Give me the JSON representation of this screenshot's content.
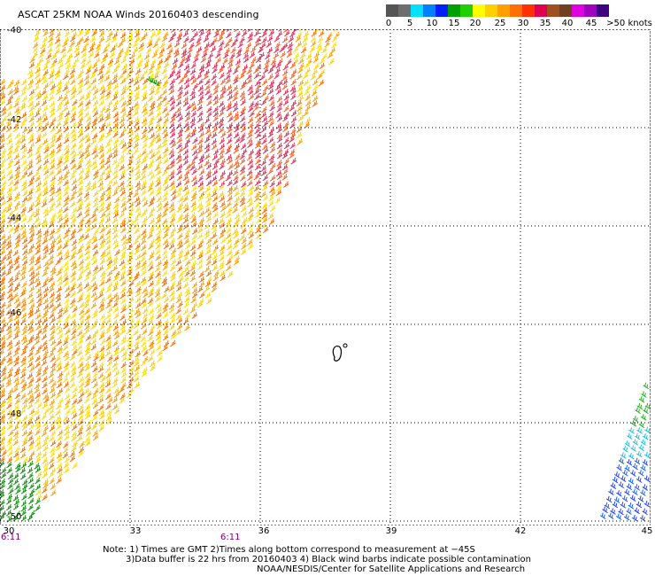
{
  "title": "ASCAT 25KM NOAA Winds 20160403 descending",
  "legend": {
    "colors": [
      "#555555",
      "#6e6e6e",
      "#00e0ff",
      "#0080ff",
      "#0020ff",
      "#00a000",
      "#20d000",
      "#ffff00",
      "#ffd000",
      "#ffa000",
      "#ff7000",
      "#ff3000",
      "#e00050",
      "#a05020",
      "#704020",
      "#e000e0",
      "#a000c0",
      "#400080"
    ],
    "labels": [
      "0",
      "5",
      "10",
      "15",
      "20",
      "25",
      "30",
      "35",
      "40",
      "45",
      ">50 knots"
    ]
  },
  "map": {
    "lat_labels": [
      "-40",
      "-42",
      "-44",
      "-46",
      "-48",
      "-50"
    ],
    "lon_labels": [
      "30",
      "33",
      "36",
      "39",
      "42",
      "45"
    ],
    "time_labels": [
      "6:11",
      "6:11"
    ],
    "grid": true,
    "grid_style": "dotted"
  },
  "notes": {
    "line1": "Note: 1) Times are GMT 2)Times along bottom correspond to measurement at −45S",
    "line2": "3)Data buffer is 22 hrs from 20160403 4) Black wind barbs indicate possible contamination",
    "line3": "NOAA/NESDIS/Center for Satellite Applications and Research"
  }
}
